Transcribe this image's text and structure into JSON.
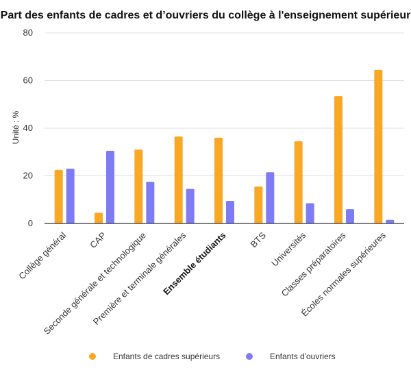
{
  "chart_data": {
    "type": "bar",
    "title": "Part des enfants de cadres et d’ouvriers du collège à l'enseignement supérieur",
    "ylabel": "Unité : %",
    "xlabel": "",
    "ylim": [
      0,
      80
    ],
    "yticks": [
      0,
      20,
      40,
      60,
      80
    ],
    "grid": true,
    "legend_position": "bottom",
    "categories": [
      "Collège général",
      "CAP",
      "Seconde générale et technologique",
      "Première et terminale générales",
      "Ensemble étudiants",
      "BTS",
      "Universités",
      "Classes préparatoires",
      "Écoles normales supérieures"
    ],
    "emphasized_category": "Ensemble étudiants",
    "series": [
      {
        "name": "Enfants de cadres supérieurs",
        "color": "#F9A825",
        "values": [
          22.5,
          4.5,
          31,
          36.5,
          36,
          15.5,
          34.5,
          53.5,
          64.5
        ]
      },
      {
        "name": "Enfants d'ouvriers",
        "color": "#7E7CF4",
        "values": [
          23,
          30.5,
          17.5,
          14.5,
          9.5,
          21.5,
          8.5,
          6,
          1.5
        ]
      }
    ]
  }
}
